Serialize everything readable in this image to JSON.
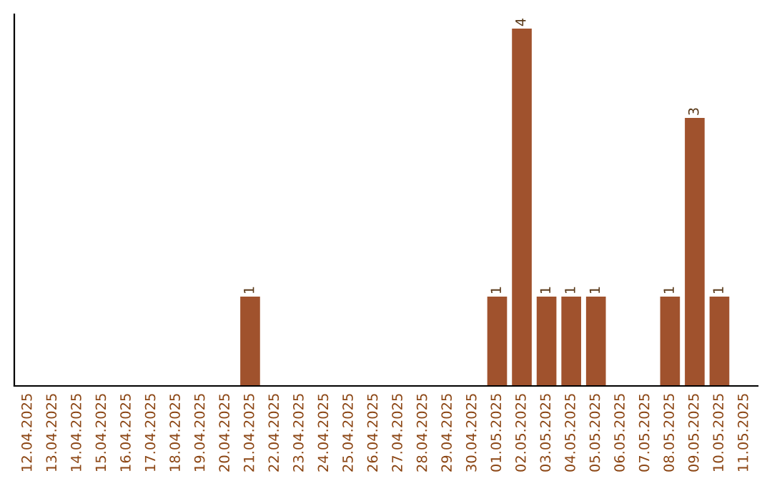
{
  "chart_data": {
    "type": "bar",
    "categories": [
      "12.04.2025",
      "13.04.2025",
      "14.04.2025",
      "15.04.2025",
      "16.04.2025",
      "17.04.2025",
      "18.04.2025",
      "19.04.2025",
      "20.04.2025",
      "21.04.2025",
      "22.04.2025",
      "23.04.2025",
      "24.04.2025",
      "25.04.2025",
      "26.04.2025",
      "27.04.2025",
      "28.04.2025",
      "29.04.2025",
      "30.04.2025",
      "01.05.2025",
      "02.05.2025",
      "03.05.2025",
      "04.05.2025",
      "05.05.2025",
      "06.05.2025",
      "07.05.2025",
      "08.05.2025",
      "09.05.2025",
      "10.05.2025",
      "11.05.2025"
    ],
    "values": [
      0,
      0,
      0,
      0,
      0,
      0,
      0,
      0,
      0,
      1,
      0,
      0,
      0,
      0,
      0,
      0,
      0,
      0,
      0,
      1,
      4,
      1,
      1,
      1,
      0,
      0,
      1,
      3,
      1,
      0
    ],
    "value_labels": [
      null,
      null,
      null,
      null,
      null,
      null,
      null,
      null,
      null,
      "1",
      null,
      null,
      null,
      null,
      null,
      null,
      null,
      null,
      null,
      "1",
      "4",
      "1",
      "1",
      "1",
      null,
      null,
      "1",
      "3",
      "1",
      null
    ],
    "color": "#a0522d",
    "tick_labels": "x",
    "grid": false,
    "legend": false
  }
}
